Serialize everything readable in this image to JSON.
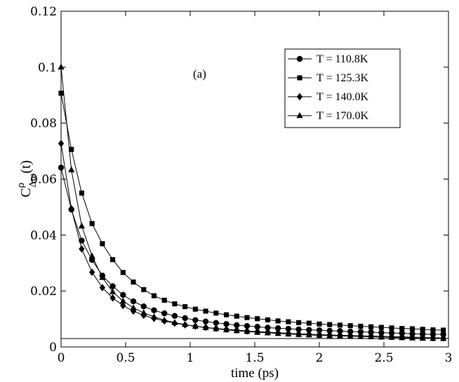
{
  "chart_data": {
    "type": "line",
    "annotation": "(a)",
    "xlabel": "time (ps)",
    "ylabel": {
      "main": "C",
      "superscript": "ρ",
      "subscript": "Δω",
      "suffix": "(t)"
    },
    "xlim": [
      0,
      3
    ],
    "ylim": [
      0,
      0.12
    ],
    "xticks": [
      0,
      0.5,
      1,
      1.5,
      2,
      2.5,
      3
    ],
    "xtick_labels": [
      "0",
      "0.5",
      "1",
      "1.5",
      "2",
      "2.5",
      "3"
    ],
    "yticks": [
      0,
      0.02,
      0.04,
      0.06,
      0.08,
      0.1,
      0.12
    ],
    "ytick_labels": [
      "0",
      "0.02",
      "0.04",
      "0.06",
      "0.08",
      "0.1",
      "0.12"
    ],
    "grid": false,
    "legend_position": "top-right",
    "baseline": 0.003,
    "x": [
      0,
      0.08,
      0.16,
      0.24,
      0.32,
      0.4,
      0.48,
      0.56,
      0.64,
      0.72,
      0.8,
      0.88,
      0.96,
      1.04,
      1.12,
      1.2,
      1.28,
      1.36,
      1.44,
      1.52,
      1.6,
      1.68,
      1.76,
      1.84,
      1.92,
      2.0,
      2.08,
      2.16,
      2.24,
      2.32,
      2.4,
      2.48,
      2.56,
      2.64,
      2.72,
      2.8,
      2.88,
      2.96
    ],
    "series": [
      {
        "name": "T = 110.8K",
        "marker": "circle",
        "values": [
          0.0641,
          0.0491,
          0.038,
          0.0311,
          0.0255,
          0.0217,
          0.0186,
          0.0163,
          0.0145,
          0.0131,
          0.012,
          0.0111,
          0.0103,
          0.0096,
          0.0091,
          0.0086,
          0.0082,
          0.0078,
          0.0075,
          0.0072,
          0.0069,
          0.0067,
          0.0065,
          0.0063,
          0.0061,
          0.006,
          0.0058,
          0.0057,
          0.0055,
          0.0054,
          0.0053,
          0.0051,
          0.005,
          0.0049,
          0.0047,
          0.0046,
          0.0045,
          0.0045
        ]
      },
      {
        "name": "T = 125.3K",
        "marker": "square",
        "values": [
          0.0907,
          0.0706,
          0.055,
          0.0441,
          0.0369,
          0.0312,
          0.0266,
          0.0232,
          0.0205,
          0.0183,
          0.0167,
          0.0154,
          0.0144,
          0.0135,
          0.0128,
          0.0121,
          0.0115,
          0.011,
          0.0105,
          0.0101,
          0.0097,
          0.0093,
          0.009,
          0.0087,
          0.0085,
          0.0082,
          0.008,
          0.0078,
          0.0076,
          0.0074,
          0.0072,
          0.007,
          0.0068,
          0.0066,
          0.0065,
          0.0063,
          0.0061,
          0.006
        ]
      },
      {
        "name": "T = 140.0K",
        "marker": "diamond",
        "values": [
          0.0727,
          0.0494,
          0.035,
          0.0267,
          0.0212,
          0.0175,
          0.0148,
          0.0128,
          0.0113,
          0.0102,
          0.0093,
          0.0085,
          0.0079,
          0.0074,
          0.007,
          0.0066,
          0.0063,
          0.006,
          0.0057,
          0.0055,
          0.0053,
          0.0051,
          0.0049,
          0.0047,
          0.0046,
          0.0044,
          0.0043,
          0.0042,
          0.0041,
          0.004,
          0.0039,
          0.0038,
          0.0037,
          0.0036,
          0.0035,
          0.0034,
          0.0033,
          0.0032
        ]
      },
      {
        "name": "T = 170.0K",
        "marker": "triangle",
        "values": [
          0.1,
          0.0633,
          0.0432,
          0.0325,
          0.0248,
          0.0197,
          0.0164,
          0.014,
          0.0122,
          0.0108,
          0.0096,
          0.0087,
          0.008,
          0.0074,
          0.0069,
          0.0065,
          0.0061,
          0.0058,
          0.0055,
          0.0052,
          0.005,
          0.0048,
          0.0046,
          0.0044,
          0.0043,
          0.0041,
          0.004,
          0.0039,
          0.0038,
          0.0037,
          0.0036,
          0.0035,
          0.0034,
          0.0033,
          0.0032,
          0.0031,
          0.003,
          0.003
        ]
      }
    ]
  }
}
